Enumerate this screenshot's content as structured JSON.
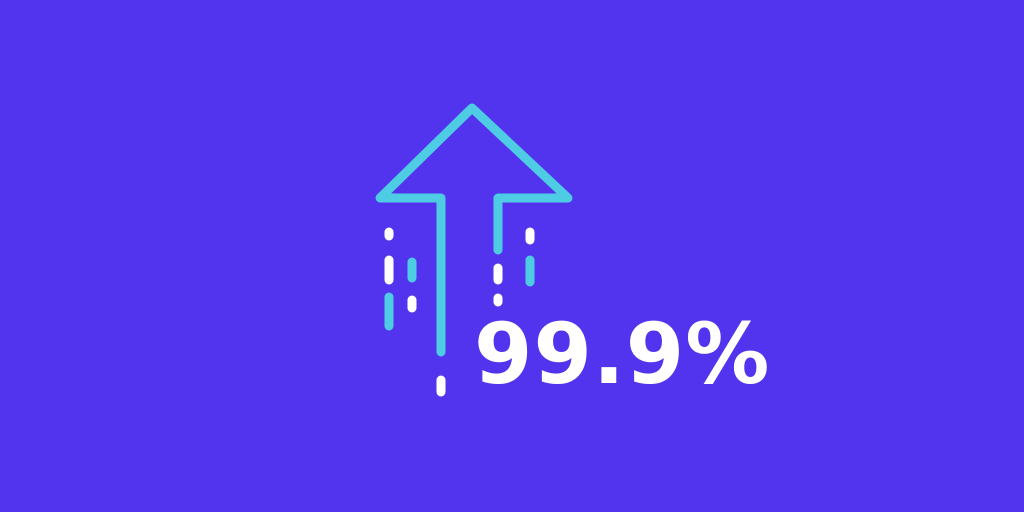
{
  "colors": {
    "background": "#5234EE",
    "arrow": "#4ECCE4",
    "white": "#FFFFFF"
  },
  "graphic": {
    "icon": "uptime-arrow-icon",
    "stat_value": "99.9%"
  }
}
